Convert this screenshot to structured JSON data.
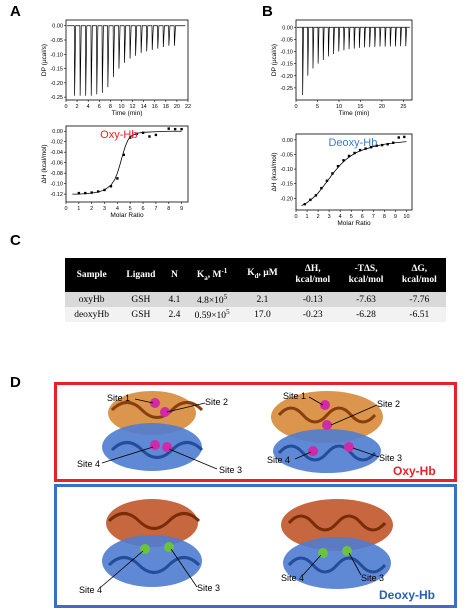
{
  "panels": {
    "a": "A",
    "b": "B",
    "c": "C",
    "d": "D"
  },
  "chart_data": [
    {
      "id": "A-top",
      "type": "line",
      "ylabel": "DP (µcal/s)",
      "xlabel": "Time (min)",
      "xlim": [
        0,
        22
      ],
      "ylim": [
        -0.26,
        0.02
      ],
      "xticks": [
        "0",
        "2",
        "4",
        "6",
        "8",
        "10",
        "12",
        "14",
        "16",
        "18",
        "20",
        "22"
      ],
      "yticks": [
        "0.00",
        "-0.05",
        "-0.10",
        "-0.15",
        "-0.20",
        "-0.25"
      ],
      "baseline": 0,
      "injection_times": [
        1.5,
        2.5,
        3.5,
        4.5,
        5.5,
        6.5,
        7.5,
        8.5,
        9.5,
        10.5,
        11.5,
        12.5,
        13.5,
        14.5,
        15.5,
        16.5,
        17.5,
        18.5,
        19.5
      ],
      "peak_values": [
        -0.245,
        -0.245,
        -0.245,
        -0.245,
        -0.24,
        -0.235,
        -0.215,
        -0.18,
        -0.15,
        -0.13,
        -0.115,
        -0.105,
        -0.095,
        -0.09,
        -0.085,
        -0.08,
        -0.075,
        -0.07,
        -0.07
      ]
    },
    {
      "id": "A-bottom",
      "type": "scatter",
      "label": "Oxy-Hb",
      "label_color": "#e8202a",
      "ylabel": "ΔH (kcal/mol)",
      "xlabel": "Molar Ratio",
      "xlim": [
        0,
        9.5
      ],
      "ylim": [
        -0.135,
        0.01
      ],
      "xticks": [
        "0",
        "1",
        "2",
        "3",
        "4",
        "5",
        "6",
        "7",
        "8",
        "9"
      ],
      "yticks": [
        "0.00",
        "-0.02",
        "-0.04",
        "-0.06",
        "-0.08",
        "-0.10",
        "-0.12"
      ],
      "x": [
        1.0,
        1.5,
        2.0,
        2.5,
        3.0,
        3.5,
        4.0,
        4.5,
        5.0,
        5.5,
        6.0,
        6.5,
        7.0,
        8.0,
        8.5,
        9.0
      ],
      "y": [
        -0.118,
        -0.118,
        -0.117,
        -0.115,
        -0.112,
        -0.105,
        -0.09,
        -0.045,
        -0.012,
        -0.005,
        -0.003,
        -0.01,
        -0.007,
        0.005,
        0.004,
        0.004
      ],
      "fit_x": [
        0.5,
        1,
        1.5,
        2,
        2.5,
        3,
        3.5,
        3.8,
        4.0,
        4.2,
        4.4,
        4.6,
        4.8,
        5.0,
        5.5,
        6,
        7,
        8,
        9
      ],
      "fit_y": [
        -0.12,
        -0.12,
        -0.119,
        -0.118,
        -0.116,
        -0.112,
        -0.103,
        -0.092,
        -0.08,
        -0.064,
        -0.046,
        -0.03,
        -0.018,
        -0.01,
        -0.004,
        -0.002,
        -0.001,
        0,
        0
      ]
    },
    {
      "id": "B-top",
      "type": "line",
      "ylabel": "DP (µcal/s)",
      "xlabel": "Time (min)",
      "xlim": [
        0,
        27
      ],
      "ylim": [
        -0.3,
        0.03
      ],
      "xticks": [
        "0",
        "5",
        "10",
        "15",
        "20",
        "25"
      ],
      "yticks": [
        "0.00",
        "-0.05",
        "-0.10",
        "-0.15",
        "-0.20",
        "-0.25"
      ],
      "baseline": 0,
      "injection_times": [
        1.5,
        2.7,
        3.9,
        5.1,
        6.3,
        7.5,
        8.7,
        9.9,
        11.1,
        12.3,
        13.5,
        14.7,
        15.9,
        17.1,
        18.3,
        19.5,
        20.7,
        21.9,
        23.1,
        24.3,
        25.5
      ],
      "peak_values": [
        -0.28,
        -0.2,
        -0.17,
        -0.15,
        -0.135,
        -0.12,
        -0.11,
        -0.1,
        -0.095,
        -0.09,
        -0.088,
        -0.085,
        -0.083,
        -0.082,
        -0.081,
        -0.08,
        -0.08,
        -0.079,
        -0.079,
        -0.078,
        -0.078
      ]
    },
    {
      "id": "B-bottom",
      "type": "scatter",
      "label": "Deoxy-Hb",
      "label_color": "#3a7bc8",
      "ylabel": "ΔH (kcal/mol)",
      "xlabel": "Molar Ratio",
      "xlim": [
        0,
        10.5
      ],
      "ylim": [
        -0.24,
        0.02
      ],
      "xticks": [
        "0",
        "1",
        "2",
        "3",
        "4",
        "5",
        "6",
        "7",
        "8",
        "9",
        "10"
      ],
      "yticks": [
        "0.00",
        "-0.05",
        "-0.10",
        "-0.15",
        "-0.20"
      ],
      "x": [
        0.8,
        1.3,
        1.8,
        2.3,
        2.8,
        3.3,
        3.8,
        4.3,
        4.8,
        5.3,
        5.8,
        6.3,
        6.8,
        7.3,
        7.8,
        8.3,
        8.8,
        9.3,
        9.8
      ],
      "y": [
        -0.22,
        -0.205,
        -0.19,
        -0.165,
        -0.14,
        -0.115,
        -0.09,
        -0.07,
        -0.055,
        -0.045,
        -0.035,
        -0.03,
        -0.025,
        -0.02,
        -0.018,
        -0.015,
        -0.01,
        0.008,
        0.01
      ],
      "fit_x": [
        0.5,
        1,
        1.5,
        2,
        2.5,
        3,
        3.5,
        4,
        4.5,
        5,
        5.5,
        6,
        7,
        8,
        9,
        10
      ],
      "fit_y": [
        -0.225,
        -0.215,
        -0.2,
        -0.182,
        -0.158,
        -0.133,
        -0.108,
        -0.086,
        -0.068,
        -0.054,
        -0.043,
        -0.035,
        -0.023,
        -0.015,
        -0.01,
        -0.006
      ]
    }
  ],
  "table": {
    "headers": [
      {
        "main": "Sample",
        "sub": ""
      },
      {
        "main": "Ligand",
        "sub": ""
      },
      {
        "main": "N",
        "sub": ""
      },
      {
        "main": "K",
        "sub": "a",
        "tail": ", M",
        "sup": "-1"
      },
      {
        "main": "K",
        "sub": "d",
        "tail": ", µM",
        "sup": ""
      },
      {
        "main": "ΔH,",
        "line2": "kcal/mol"
      },
      {
        "main": "-TΔS,",
        "line2": "kcal/mol"
      },
      {
        "main": "ΔG,",
        "line2": "kcal/mol"
      }
    ],
    "rows": [
      {
        "sample": "oxyHb",
        "ligand": "GSH",
        "n": "4.1",
        "ka_base": "4.8×10",
        "ka_exp": "5",
        "kd": "2.1",
        "dh": "-0.13",
        "tds": "-7.63",
        "dg": "-7.76"
      },
      {
        "sample": "deoxyHb",
        "ligand": "GSH",
        "n": "2.4",
        "ka_base": "0.59×10",
        "ka_exp": "5",
        "kd": "17.0",
        "dh": "-0.23",
        "tds": "-6.28",
        "dg": "-6.51"
      }
    ]
  },
  "structures": {
    "oxy": {
      "label": "Oxy-Hb",
      "label_color": "#e8202a",
      "border_color": "#e8202a",
      "left_sites": [
        "Site 1",
        "Site 2",
        "Site 4",
        "Site 3"
      ],
      "right_sites": [
        "Site 1",
        "Site 2",
        "Site 4",
        "Site 3"
      ]
    },
    "deoxy": {
      "label": "Deoxy-Hb",
      "label_color": "#2a5db8",
      "border_color": "#3a6fc4",
      "left_sites": [
        "Site 4",
        "Site 3"
      ],
      "right_sites": [
        "Site 4",
        "Site 3"
      ]
    }
  }
}
